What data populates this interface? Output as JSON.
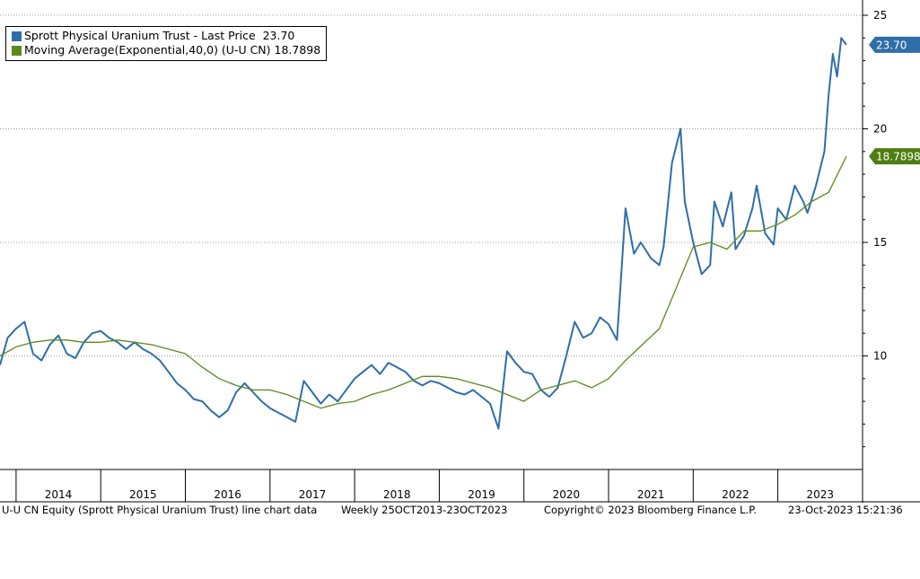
{
  "chart_data": {
    "type": "line",
    "title": "U-U CN Equity (Sprott Physical Uranium Trust) line chart data",
    "frequency": "Weekly 25OCT2013-23OCT2023",
    "ylim": [
      5,
      25
    ],
    "yticks": [
      10,
      15,
      20,
      25
    ],
    "grid": "horizontal dotted",
    "legend_position": "top-left",
    "x_range": [
      2013.81,
      2023.81
    ],
    "x_tick_labels": [
      "2014",
      "2015",
      "2016",
      "2017",
      "2018",
      "2019",
      "2020",
      "2021",
      "2022",
      "2023"
    ],
    "series": [
      {
        "name": "Sprott Physical Uranium Trust - Last Price",
        "last_value": "23.70",
        "color": "#2f6ea8",
        "x": [
          2013.81,
          2013.9,
          2014.0,
          2014.1,
          2014.2,
          2014.3,
          2014.4,
          2014.5,
          2014.6,
          2014.7,
          2014.8,
          2014.9,
          2015.0,
          2015.1,
          2015.2,
          2015.3,
          2015.4,
          2015.5,
          2015.6,
          2015.7,
          2015.8,
          2015.9,
          2016.0,
          2016.1,
          2016.2,
          2016.3,
          2016.4,
          2016.5,
          2016.6,
          2016.7,
          2016.8,
          2016.9,
          2017.0,
          2017.1,
          2017.2,
          2017.3,
          2017.4,
          2017.5,
          2017.6,
          2017.7,
          2017.8,
          2017.9,
          2018.0,
          2018.1,
          2018.2,
          2018.3,
          2018.4,
          2018.5,
          2018.6,
          2018.7,
          2018.8,
          2018.9,
          2019.0,
          2019.1,
          2019.2,
          2019.3,
          2019.4,
          2019.5,
          2019.6,
          2019.7,
          2019.8,
          2019.9,
          2020.0,
          2020.1,
          2020.2,
          2020.3,
          2020.4,
          2020.5,
          2020.6,
          2020.7,
          2020.8,
          2020.9,
          2021.0,
          2021.1,
          2021.2,
          2021.3,
          2021.38,
          2021.5,
          2021.6,
          2021.65,
          2021.75,
          2021.85,
          2021.9,
          2022.0,
          2022.1,
          2022.2,
          2022.25,
          2022.35,
          2022.45,
          2022.5,
          2022.6,
          2022.7,
          2022.75,
          2022.85,
          2022.95,
          2023.0,
          2023.1,
          2023.2,
          2023.3,
          2023.35,
          2023.45,
          2023.55,
          2023.6,
          2023.65,
          2023.7,
          2023.75,
          2023.81
        ],
        "y": [
          9.6,
          10.8,
          11.2,
          11.5,
          10.1,
          9.8,
          10.5,
          10.9,
          10.1,
          9.9,
          10.6,
          11.0,
          11.1,
          10.8,
          10.6,
          10.3,
          10.6,
          10.3,
          10.1,
          9.8,
          9.3,
          8.8,
          8.5,
          8.1,
          8.0,
          7.6,
          7.3,
          7.6,
          8.4,
          8.8,
          8.4,
          8.0,
          7.7,
          7.5,
          7.3,
          7.1,
          8.9,
          8.4,
          7.9,
          8.3,
          8.0,
          8.5,
          9.0,
          9.3,
          9.6,
          9.2,
          9.7,
          9.5,
          9.3,
          8.9,
          8.7,
          8.9,
          8.8,
          8.6,
          8.4,
          8.3,
          8.5,
          8.2,
          7.9,
          6.8,
          10.2,
          9.7,
          9.3,
          9.2,
          8.5,
          8.2,
          8.6,
          10.0,
          11.5,
          10.8,
          11.0,
          11.7,
          11.4,
          10.7,
          16.5,
          14.5,
          15.0,
          14.3,
          14.0,
          14.8,
          18.5,
          20.0,
          16.8,
          15.0,
          13.6,
          14.0,
          16.8,
          15.7,
          17.2,
          14.7,
          15.3,
          16.5,
          17.5,
          15.4,
          14.9,
          16.5,
          16.0,
          17.5,
          16.8,
          16.3,
          17.5,
          19.0,
          21.5,
          23.3,
          22.3,
          24.0,
          23.7
        ]
      },
      {
        "name": "Moving Average(Exponential,40,0) (U-U CN)",
        "last_value": "18.7898",
        "color": "#5c8a1a",
        "x": [
          2013.81,
          2014.0,
          2014.2,
          2014.4,
          2014.6,
          2014.8,
          2015.0,
          2015.2,
          2015.4,
          2015.6,
          2015.8,
          2016.0,
          2016.2,
          2016.4,
          2016.6,
          2016.8,
          2017.0,
          2017.2,
          2017.4,
          2017.6,
          2017.8,
          2018.0,
          2018.2,
          2018.4,
          2018.6,
          2018.8,
          2019.0,
          2019.2,
          2019.4,
          2019.6,
          2019.8,
          2020.0,
          2020.2,
          2020.4,
          2020.6,
          2020.8,
          2021.0,
          2021.2,
          2021.4,
          2021.6,
          2021.8,
          2022.0,
          2022.2,
          2022.4,
          2022.6,
          2022.8,
          2023.0,
          2023.2,
          2023.4,
          2023.6,
          2023.81
        ],
        "y": [
          10.0,
          10.4,
          10.6,
          10.7,
          10.7,
          10.6,
          10.6,
          10.7,
          10.6,
          10.5,
          10.3,
          10.1,
          9.5,
          9.0,
          8.7,
          8.5,
          8.5,
          8.3,
          8.0,
          7.7,
          7.9,
          8.0,
          8.3,
          8.5,
          8.8,
          9.1,
          9.1,
          9.0,
          8.8,
          8.6,
          8.3,
          8.0,
          8.5,
          8.7,
          8.9,
          8.6,
          9.0,
          9.8,
          10.5,
          11.2,
          13.0,
          14.8,
          15.0,
          14.7,
          15.5,
          15.5,
          15.8,
          16.2,
          16.8,
          17.2,
          18.7898
        ]
      }
    ]
  },
  "legend": {
    "entries": [
      {
        "text": "Sprott Physical Uranium Trust - Last Price  23.70",
        "color": "#2f6ea8"
      },
      {
        "text": "Moving Average(Exponential,40,0) (U-U CN) 18.7898",
        "color": "#5c8a1a"
      }
    ]
  },
  "badges": {
    "price": {
      "text": "23.70",
      "value": 23.7,
      "color": "#2f6ea8"
    },
    "ma": {
      "text": "18.7898",
      "value": 18.7898,
      "color": "#4e7d12"
    }
  },
  "footer": {
    "left": "U-U CN Equity (Sprott Physical Uranium Trust) line chart data",
    "middle": "Weekly 25OCT2013-23OCT2023",
    "copyright": "Copyright© 2023 Bloomberg Finance L.P.",
    "timestamp": "23-Oct-2023 15:21:36"
  }
}
